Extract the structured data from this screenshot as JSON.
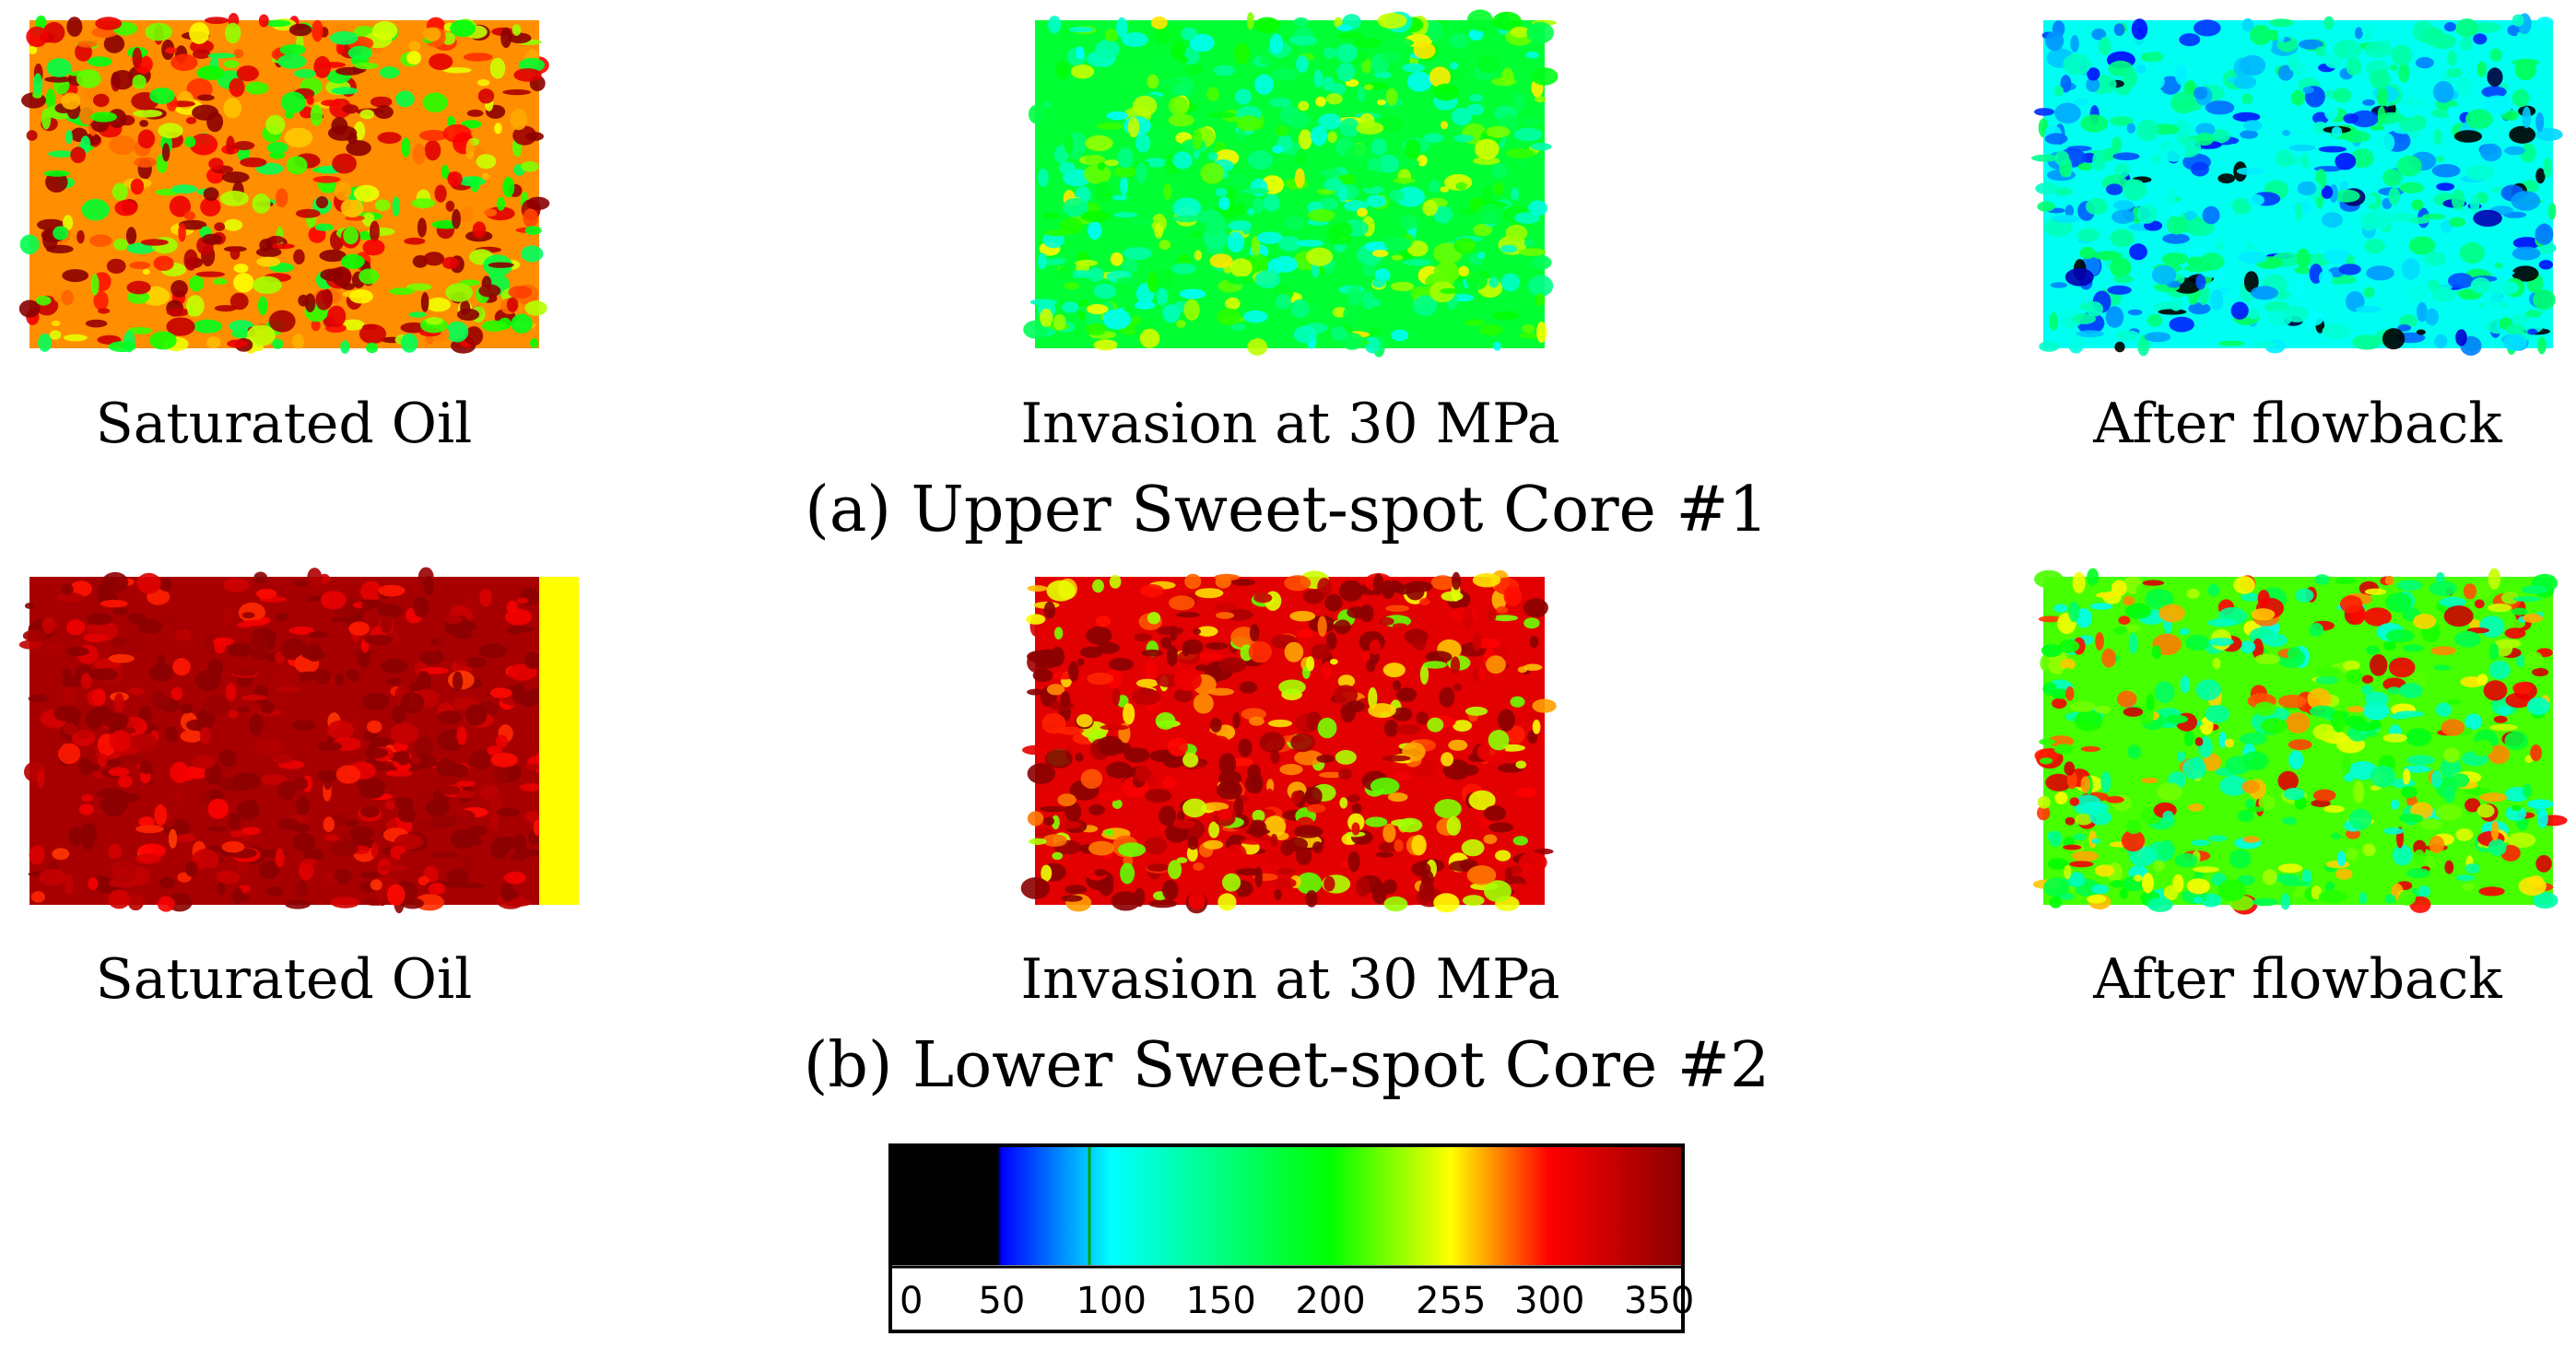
{
  "figure": {
    "rows": [
      {
        "caption": "(a) Upper Sweet-spot Core #1",
        "panels": [
          {
            "label": "Saturated Oil",
            "base_value": 275,
            "spread": 70,
            "seed": 11
          },
          {
            "label": "Invasion at 30 MPa",
            "base_value": 180,
            "spread": 50,
            "seed": 23
          },
          {
            "label": "After flowback",
            "base_value": 105,
            "spread": 40,
            "seed": 37
          }
        ]
      },
      {
        "caption": "(b) Lower Sweet-spot Core #2",
        "panels": [
          {
            "label": "Saturated Oil",
            "base_value": 345,
            "spread": 35,
            "seed": 41
          },
          {
            "label": "Invasion at 30 MPa",
            "base_value": 315,
            "spread": 60,
            "seed": 53
          },
          {
            "label": "After flowback",
            "base_value": 215,
            "spread": 70,
            "seed": 67
          }
        ]
      }
    ]
  },
  "colorbar": {
    "min": 0,
    "max": 360,
    "tick_labels": [
      "0",
      "50",
      "100",
      "150",
      "200",
      "255",
      "300",
      "350"
    ],
    "tick_values": [
      0,
      50,
      100,
      150,
      200,
      255,
      300,
      350
    ],
    "stops": [
      {
        "value": 0,
        "color": "#000000"
      },
      {
        "value": 48,
        "color": "#000000"
      },
      {
        "value": 50,
        "color": "#0000ff"
      },
      {
        "value": 100,
        "color": "#00ffff"
      },
      {
        "value": 200,
        "color": "#00ff00"
      },
      {
        "value": 255,
        "color": "#ffff00"
      },
      {
        "value": 300,
        "color": "#ff0000"
      },
      {
        "value": 360,
        "color": "#8b0000"
      }
    ]
  }
}
